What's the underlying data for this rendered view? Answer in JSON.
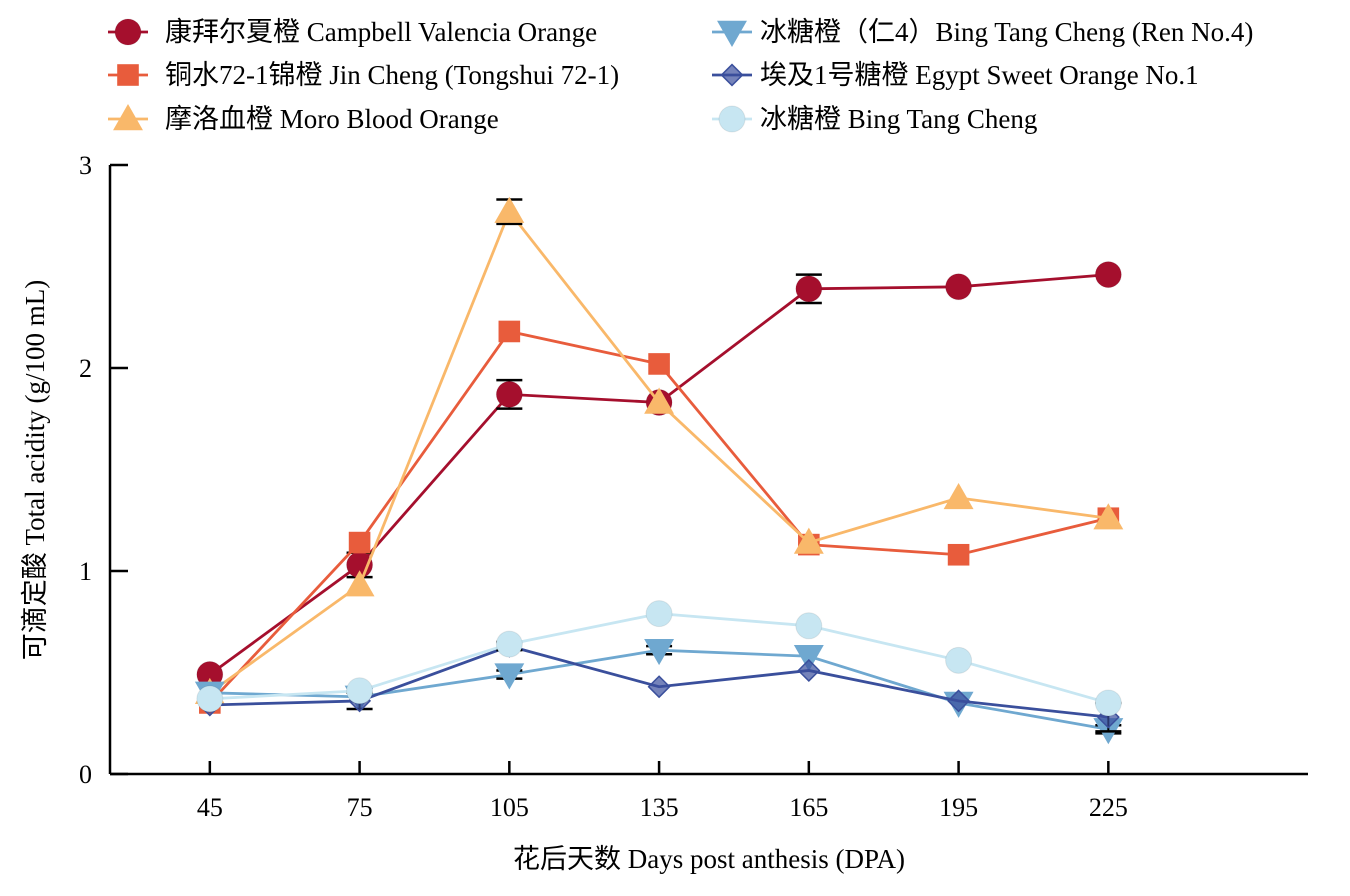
{
  "chart_data": {
    "type": "line",
    "title": "",
    "xlabel": "花后天数 Days post anthesis (DPA)",
    "ylabel": "可滴定酸 Total acidity (g/100 mL)",
    "x": [
      45,
      75,
      105,
      135,
      165,
      195,
      225
    ],
    "xlim": [
      25,
      265
    ],
    "ylim": [
      0,
      3
    ],
    "yticks": [
      0,
      1,
      2,
      3
    ],
    "grid": false,
    "legend_position": "top",
    "series": [
      {
        "name": "康拜尔夏橙 Campbell Valencia Orange",
        "color": "#a50f2d",
        "marker": "circle",
        "values": [
          0.49,
          1.03,
          1.87,
          1.83,
          2.39,
          2.4,
          2.46
        ],
        "errors": [
          0,
          0.06,
          0.07,
          0,
          0.07,
          0,
          0
        ]
      },
      {
        "name": "铜水72-1锦橙 Jin Cheng (Tongshui 72-1)",
        "color": "#e85c3c",
        "marker": "square",
        "values": [
          0.35,
          1.14,
          2.18,
          2.02,
          1.13,
          1.08,
          1.26
        ],
        "errors": [
          0,
          0,
          0,
          0,
          0,
          0,
          0
        ]
      },
      {
        "name": "摩洛血橙 Moro Blood Orange",
        "color": "#f9b86a",
        "marker": "triangle-up",
        "values": [
          0.4,
          0.93,
          2.77,
          1.83,
          1.14,
          1.36,
          1.26
        ],
        "errors": [
          0,
          0,
          0.06,
          0,
          0,
          0,
          0
        ]
      },
      {
        "name": "冰糖橙（仁4）Bing Tang Cheng (Ren No.4)",
        "color": "#6fa8d0",
        "marker": "triangle-down",
        "values": [
          0.4,
          0.38,
          0.49,
          0.61,
          0.58,
          0.35,
          0.22
        ],
        "errors": [
          0,
          0,
          0.02,
          0.02,
          0,
          0,
          0.02
        ]
      },
      {
        "name": "埃及1号糖橙 Egypt Sweet Orange No.1",
        "color": "#3a4f9c",
        "marker": "diamond",
        "values": [
          0.34,
          0.36,
          0.63,
          0.43,
          0.51,
          0.36,
          0.28
        ],
        "errors": [
          0,
          0.04,
          0.02,
          0,
          0,
          0,
          0.07
        ]
      },
      {
        "name": "冰糖橙 Bing Tang Cheng",
        "color": "#c7e6f2",
        "marker": "circle",
        "values": [
          0.37,
          0.41,
          0.64,
          0.79,
          0.73,
          0.56,
          0.35
        ],
        "errors": [
          0,
          0,
          0,
          0,
          0,
          0,
          0
        ]
      }
    ]
  }
}
